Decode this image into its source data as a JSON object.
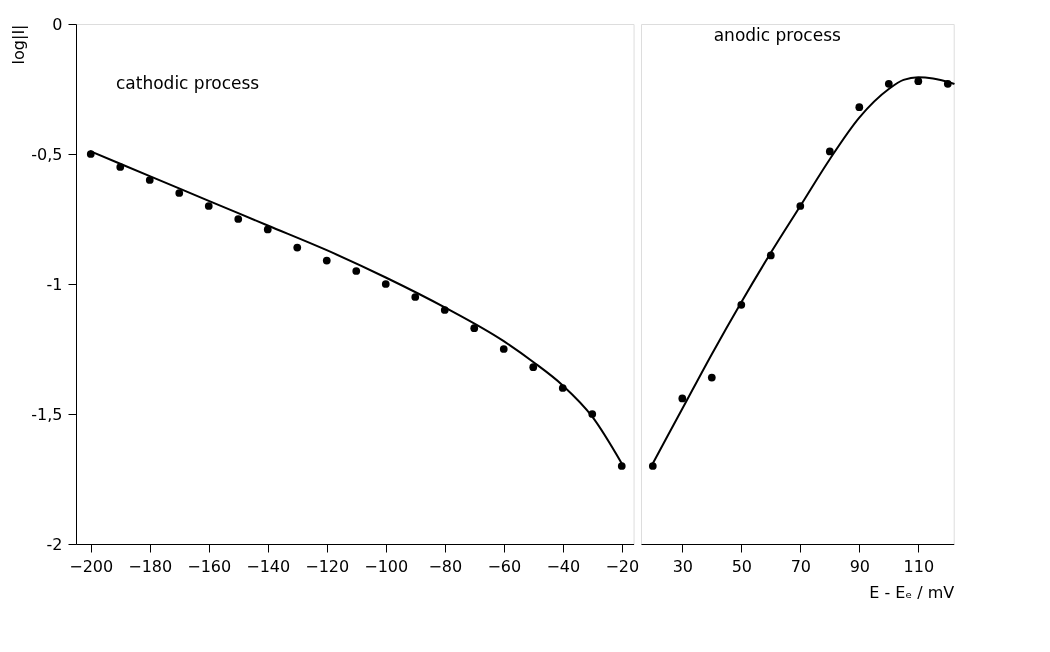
{
  "chart_data": [
    {
      "type": "scatter",
      "ylabel": "log|I|",
      "xlim": [
        -205,
        -16
      ],
      "ylim": [
        -2,
        0
      ],
      "xticks": [
        -200,
        -180,
        -160,
        -140,
        -120,
        -100,
        -80,
        -60,
        -40,
        -20
      ],
      "yticks": [
        {
          "value": -2,
          "label": "-2"
        },
        {
          "value": -1.5,
          "label": "-1,5"
        },
        {
          "value": -1,
          "label": "-1"
        },
        {
          "value": -0.5,
          "label": "-0,5"
        },
        {
          "value": 0,
          "label": "0"
        }
      ],
      "annotations": [
        "cathodic process"
      ],
      "series": [
        {
          "marker": "circle",
          "color": "#000000",
          "x": [
            -200,
            -190,
            -180,
            -170,
            -160,
            -150,
            -140,
            -130,
            -120,
            -110,
            -100,
            -90,
            -80,
            -70,
            -60,
            -50,
            -40,
            -30,
            -20
          ],
          "values": [
            -0.5,
            -0.55,
            -0.6,
            -0.65,
            -0.7,
            -0.75,
            -0.79,
            -0.86,
            -0.91,
            -0.95,
            -1.0,
            -1.05,
            -1.1,
            -1.17,
            -1.25,
            -1.32,
            -1.4,
            -1.5,
            -1.7
          ]
        },
        {
          "type": "line",
          "color": "#000000",
          "line_style": "solid",
          "x": [
            -200,
            -180,
            -160,
            -140,
            -120,
            -100,
            -80,
            -60,
            -50,
            -40,
            -30,
            -20
          ],
          "values": [
            -0.49,
            -0.585,
            -0.68,
            -0.775,
            -0.87,
            -0.975,
            -1.09,
            -1.22,
            -1.3,
            -1.39,
            -1.51,
            -1.69
          ]
        }
      ]
    },
    {
      "type": "scatter",
      "xlabel": "E - Eₑ / mV",
      "xlim": [
        16,
        122
      ],
      "ylim": [
        -2,
        0
      ],
      "xticks": [
        30,
        50,
        70,
        90,
        110
      ],
      "tick_labels": "x",
      "annotations": [
        "anodic process"
      ],
      "series": [
        {
          "marker": "circle",
          "color": "#000000",
          "x": [
            20,
            30,
            40,
            50,
            60,
            70,
            80,
            90,
            100,
            110,
            120
          ],
          "values": [
            -1.7,
            -1.44,
            -1.36,
            -1.08,
            -0.89,
            -0.7,
            -0.49,
            -0.32,
            -0.23,
            -0.22,
            -0.23
          ]
        },
        {
          "type": "line",
          "color": "#000000",
          "line_style": "solid",
          "x": [
            20,
            30,
            40,
            50,
            60,
            70,
            80,
            90,
            100,
            105,
            110,
            115,
            122
          ],
          "values": [
            -1.69,
            -1.48,
            -1.27,
            -1.07,
            -0.88,
            -0.7,
            -0.52,
            -0.36,
            -0.25,
            -0.215,
            -0.205,
            -0.21,
            -0.23
          ]
        }
      ]
    }
  ]
}
